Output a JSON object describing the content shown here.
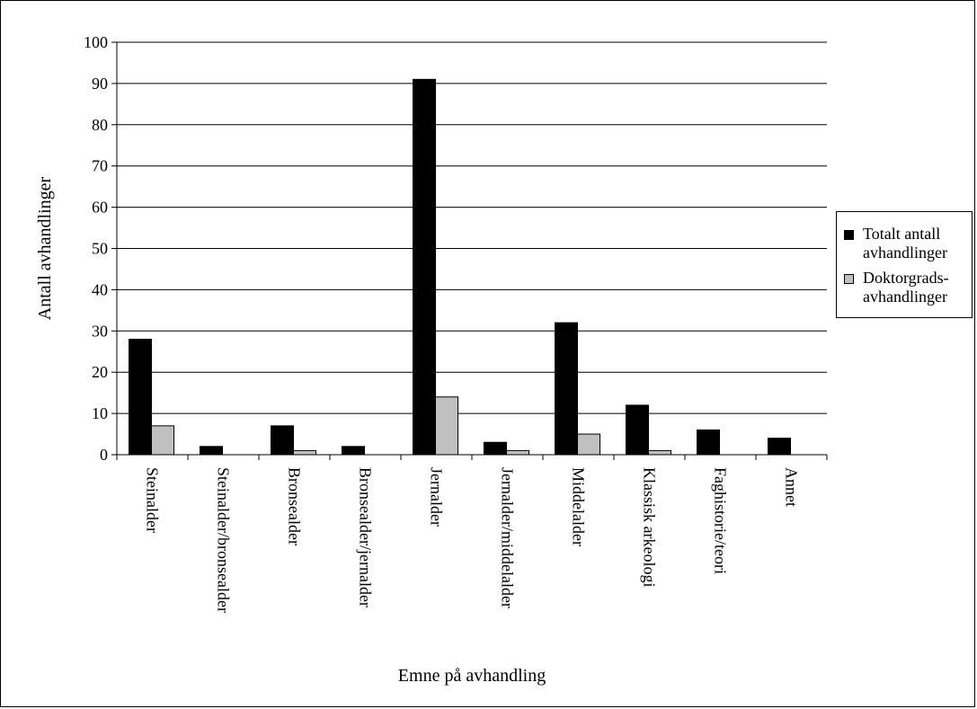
{
  "chart_data": {
    "type": "bar",
    "title": "",
    "xlabel": "Emne på avhandling",
    "ylabel": "Antall avhandlinger",
    "ylim": [
      0,
      100
    ],
    "yticks": [
      0,
      10,
      20,
      30,
      40,
      50,
      60,
      70,
      80,
      90,
      100
    ],
    "grid": true,
    "legend_position": "right",
    "categories": [
      "Steinalder",
      "Steinalder/bronsealder",
      "Bronsealder",
      "Bronsealder/jernalder",
      "Jernalder",
      "Jernalder/middelalder",
      "Middelalder",
      "Klassisk arkeologi",
      "Faghistorie/teori",
      "Annet"
    ],
    "series": [
      {
        "name": "Totalt antall\navhandlinger",
        "color": "#000000",
        "values": [
          28,
          2,
          7,
          2,
          91,
          3,
          32,
          12,
          6,
          4
        ]
      },
      {
        "name": "Doktorgrads-\navhandlinger",
        "color": "#c0c0c0",
        "values": [
          7,
          0,
          1,
          0,
          14,
          1,
          5,
          1,
          0,
          0
        ]
      }
    ]
  }
}
